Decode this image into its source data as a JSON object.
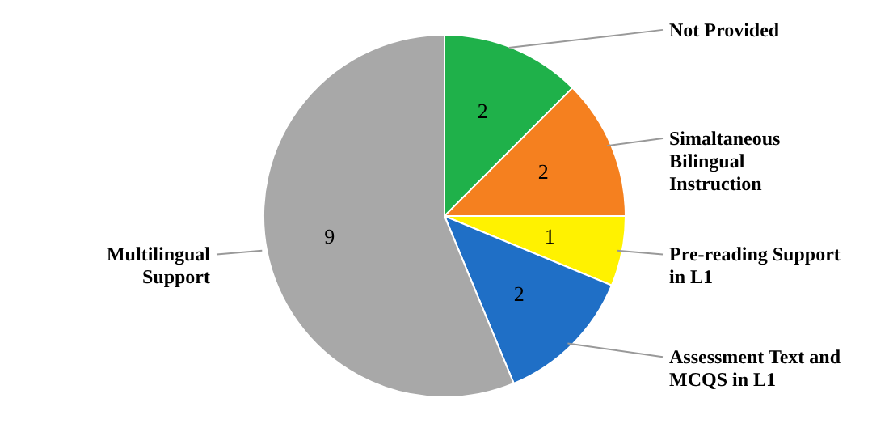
{
  "chart_data": {
    "type": "pie",
    "categories": [
      "Not Provided",
      "Simaltaneous Bilingual Instruction",
      "Pre-reading Support in L1",
      "Assessment Text and MCQS in L1",
      "Multilingual Support"
    ],
    "values": [
      2,
      2,
      1,
      2,
      9
    ],
    "colors": [
      "#1fb14a",
      "#f5801f",
      "#fff200",
      "#1f6fc6",
      "#a8a8a8"
    ],
    "data_labels": true
  }
}
